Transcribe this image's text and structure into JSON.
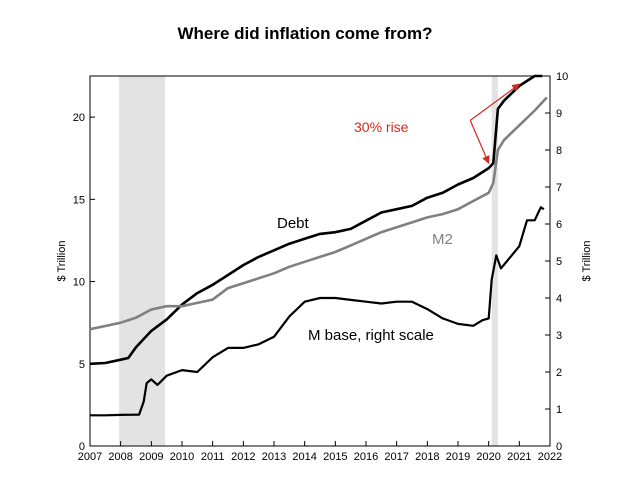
{
  "chart_data": {
    "type": "line",
    "title": "Where did inflation come from?",
    "ylabel_left": "$ Trillion",
    "ylabel_right": "$ Trillion",
    "xlim": [
      2007,
      2022
    ],
    "ylim_left": [
      0,
      22.5
    ],
    "ylim_right": [
      0,
      10
    ],
    "x_ticks": [
      "2007",
      "2008",
      "2009",
      "2010",
      "2011",
      "2012",
      "2013",
      "2014",
      "2015",
      "2016",
      "2017",
      "2018",
      "2019",
      "2020",
      "2021",
      "2022"
    ],
    "y_ticks_left": [
      "0",
      "5",
      "10",
      "15",
      "20"
    ],
    "y_ticks_right": [
      "0",
      "1",
      "2",
      "3",
      "4",
      "5",
      "6",
      "7",
      "8",
      "9",
      "10"
    ],
    "recessions": [
      [
        2007.95,
        2009.45
      ],
      [
        2020.1,
        2020.3
      ]
    ],
    "colors": {
      "debt": "#000000",
      "m2": "#808080",
      "mbase": "#000000",
      "recession": "#e3e3e3",
      "annotation": "#d42a1e"
    },
    "series": [
      {
        "name": "Debt",
        "axis": "left",
        "x": [
          2007.0,
          2007.5,
          2008.0,
          2008.25,
          2008.5,
          2009.0,
          2009.5,
          2010.0,
          2010.5,
          2011.0,
          2011.5,
          2012.0,
          2012.5,
          2013.0,
          2013.5,
          2014.0,
          2014.5,
          2015.0,
          2015.5,
          2016.0,
          2016.5,
          2017.0,
          2017.5,
          2018.0,
          2018.5,
          2019.0,
          2019.5,
          2020.0,
          2020.15,
          2020.3,
          2020.5,
          2021.0,
          2021.5,
          2021.75
        ],
        "values": [
          5.0,
          5.05,
          5.25,
          5.35,
          6.0,
          7.0,
          7.7,
          8.6,
          9.3,
          9.8,
          10.4,
          11.0,
          11.5,
          11.9,
          12.3,
          12.6,
          12.9,
          13.0,
          13.2,
          13.7,
          14.2,
          14.4,
          14.6,
          15.1,
          15.4,
          15.9,
          16.3,
          16.9,
          17.2,
          20.5,
          21.0,
          21.9,
          22.5,
          22.5
        ]
      },
      {
        "name": "M2",
        "axis": "left",
        "x": [
          2007.0,
          2007.5,
          2008.0,
          2008.5,
          2009.0,
          2009.5,
          2010.0,
          2010.5,
          2011.0,
          2011.5,
          2012.0,
          2012.5,
          2013.0,
          2013.5,
          2014.0,
          2014.5,
          2015.0,
          2015.5,
          2016.0,
          2016.5,
          2017.0,
          2017.5,
          2018.0,
          2018.5,
          2019.0,
          2019.5,
          2020.0,
          2020.15,
          2020.3,
          2020.5,
          2021.0,
          2021.5,
          2021.9
        ],
        "values": [
          7.1,
          7.3,
          7.5,
          7.8,
          8.3,
          8.5,
          8.5,
          8.7,
          8.9,
          9.6,
          9.9,
          10.2,
          10.5,
          10.9,
          11.2,
          11.5,
          11.8,
          12.2,
          12.6,
          13.0,
          13.3,
          13.6,
          13.9,
          14.1,
          14.4,
          14.9,
          15.4,
          16.0,
          18.0,
          18.6,
          19.5,
          20.4,
          21.2
        ]
      },
      {
        "name": "M base, right scale",
        "axis": "right",
        "x": [
          2007.0,
          2007.5,
          2008.0,
          2008.6,
          2008.75,
          2008.85,
          2009.0,
          2009.2,
          2009.5,
          2010.0,
          2010.5,
          2011.0,
          2011.5,
          2012.0,
          2012.5,
          2013.0,
          2013.5,
          2014.0,
          2014.5,
          2015.0,
          2015.5,
          2016.0,
          2016.5,
          2017.0,
          2017.5,
          2018.0,
          2018.5,
          2019.0,
          2019.5,
          2019.8,
          2020.0,
          2020.1,
          2020.25,
          2020.4,
          2020.6,
          2021.0,
          2021.25,
          2021.5,
          2021.7,
          2021.8
        ],
        "values": [
          0.83,
          0.83,
          0.84,
          0.85,
          1.2,
          1.7,
          1.8,
          1.65,
          1.9,
          2.05,
          2.0,
          2.4,
          2.65,
          2.65,
          2.75,
          2.95,
          3.5,
          3.9,
          4.0,
          4.0,
          3.95,
          3.9,
          3.85,
          3.9,
          3.9,
          3.7,
          3.45,
          3.3,
          3.25,
          3.4,
          3.45,
          4.5,
          5.15,
          4.8,
          5.0,
          5.4,
          6.1,
          6.1,
          6.45,
          6.4
        ]
      }
    ],
    "series_labels": {
      "debt": "Debt",
      "m2": "M2",
      "mbase": "M base, right scale"
    },
    "annotation": {
      "text": "30% rise",
      "arrows": [
        {
          "to_x": 2021.0,
          "to_y": 22.0
        },
        {
          "to_x": 2020.0,
          "to_y": 17.2
        }
      ],
      "from_x": 2019.4,
      "from_y": 19.8
    }
  }
}
